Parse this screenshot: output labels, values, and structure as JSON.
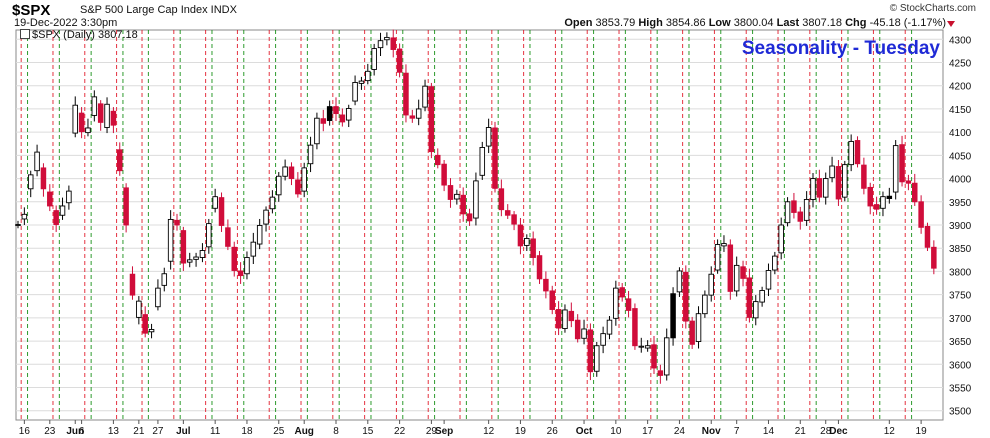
{
  "header": {
    "symbol": "$SPX",
    "full_name": "S&P 500 Large Cap Index INDX",
    "date_time": "19-Dec-2022 3:30pm",
    "credit": "© StockCharts.com",
    "open_label": "Open",
    "open_value": "3853.79",
    "high_label": "High",
    "high_value": "3854.86",
    "low_label": "Low",
    "low_value": "3800.04",
    "last_label": "Last",
    "last_value": "3807.18",
    "chg_label": "Chg",
    "chg_value": "-45.18 (-1.17%)"
  },
  "legend": {
    "text": "$SPX (Daily) 3807.18"
  },
  "overlay_title": "Seasonality - Tuesday",
  "colors": {
    "up": "#000000",
    "down": "#d00d3a",
    "grid": "#dcdcdc",
    "red_line": "#e01020",
    "green_line": "#0a8a0a",
    "title": "#1f2ad6"
  },
  "chart_data": {
    "type": "candlestick",
    "title": "Seasonality - Tuesday",
    "ylim": [
      3480,
      4320
    ],
    "y_ticks": [
      3500,
      3550,
      3600,
      3650,
      3700,
      3750,
      3800,
      3850,
      3900,
      3950,
      4000,
      4050,
      4100,
      4150,
      4200,
      4250,
      4300
    ],
    "x_labels": [
      {
        "label": "16",
        "index": 1,
        "bold": false
      },
      {
        "label": "23",
        "index": 5,
        "bold": false
      },
      {
        "label": "Jun",
        "index": 9,
        "bold": true
      },
      {
        "label": "6",
        "index": 10,
        "bold": false
      },
      {
        "label": "13",
        "index": 15,
        "bold": false
      },
      {
        "label": "21",
        "index": 19,
        "bold": false
      },
      {
        "label": "27",
        "index": 22,
        "bold": false
      },
      {
        "label": "Jul",
        "index": 26,
        "bold": true
      },
      {
        "label": "11",
        "index": 31,
        "bold": false
      },
      {
        "label": "18",
        "index": 36,
        "bold": false
      },
      {
        "label": "25",
        "index": 41,
        "bold": false
      },
      {
        "label": "Aug",
        "index": 45,
        "bold": true
      },
      {
        "label": "8",
        "index": 50,
        "bold": false
      },
      {
        "label": "15",
        "index": 55,
        "bold": false
      },
      {
        "label": "22",
        "index": 60,
        "bold": false
      },
      {
        "label": "29",
        "index": 65,
        "bold": false
      },
      {
        "label": "Sep",
        "index": 67,
        "bold": true
      },
      {
        "label": "12",
        "index": 74,
        "bold": false
      },
      {
        "label": "19",
        "index": 79,
        "bold": false
      },
      {
        "label": "26",
        "index": 84,
        "bold": false
      },
      {
        "label": "Oct",
        "index": 89,
        "bold": true
      },
      {
        "label": "10",
        "index": 94,
        "bold": false
      },
      {
        "label": "17",
        "index": 99,
        "bold": false
      },
      {
        "label": "24",
        "index": 104,
        "bold": false
      },
      {
        "label": "Nov",
        "index": 109,
        "bold": true
      },
      {
        "label": "7",
        "index": 113,
        "bold": false
      },
      {
        "label": "14",
        "index": 118,
        "bold": false
      },
      {
        "label": "21",
        "index": 123,
        "bold": false
      },
      {
        "label": "28",
        "index": 127,
        "bold": false
      },
      {
        "label": "Dec",
        "index": 129,
        "bold": true
      },
      {
        "label": "12",
        "index": 137,
        "bold": false
      },
      {
        "label": "19",
        "index": 142,
        "bold": false
      }
    ],
    "vlines": [
      {
        "index": 1,
        "color": "red"
      },
      {
        "index": 2,
        "color": "green"
      },
      {
        "index": 6,
        "color": "red"
      },
      {
        "index": 7,
        "color": "green"
      },
      {
        "index": 11,
        "color": "red"
      },
      {
        "index": 12,
        "color": "green"
      },
      {
        "index": 16,
        "color": "red"
      },
      {
        "index": 17,
        "color": "green"
      },
      {
        "index": 20,
        "color": "red"
      },
      {
        "index": 21,
        "color": "green"
      },
      {
        "index": 25,
        "color": "red"
      },
      {
        "index": 26,
        "color": "green"
      },
      {
        "index": 30,
        "color": "red"
      },
      {
        "index": 31,
        "color": "green"
      },
      {
        "index": 35,
        "color": "red"
      },
      {
        "index": 36,
        "color": "green"
      },
      {
        "index": 40,
        "color": "red"
      },
      {
        "index": 41,
        "color": "green"
      },
      {
        "index": 45,
        "color": "red"
      },
      {
        "index": 46,
        "color": "green"
      },
      {
        "index": 50,
        "color": "red"
      },
      {
        "index": 51,
        "color": "green"
      },
      {
        "index": 55,
        "color": "red"
      },
      {
        "index": 56,
        "color": "green"
      },
      {
        "index": 60,
        "color": "red"
      },
      {
        "index": 61,
        "color": "green"
      },
      {
        "index": 65,
        "color": "red"
      },
      {
        "index": 66,
        "color": "green"
      },
      {
        "index": 70,
        "color": "red"
      },
      {
        "index": 71,
        "color": "green"
      },
      {
        "index": 75,
        "color": "red"
      },
      {
        "index": 76,
        "color": "green"
      },
      {
        "index": 80,
        "color": "red"
      },
      {
        "index": 81,
        "color": "green"
      },
      {
        "index": 85,
        "color": "red"
      },
      {
        "index": 86,
        "color": "green"
      },
      {
        "index": 90,
        "color": "red"
      },
      {
        "index": 91,
        "color": "green"
      },
      {
        "index": 95,
        "color": "red"
      },
      {
        "index": 96,
        "color": "green"
      },
      {
        "index": 100,
        "color": "red"
      },
      {
        "index": 101,
        "color": "green"
      },
      {
        "index": 105,
        "color": "red"
      },
      {
        "index": 106,
        "color": "green"
      },
      {
        "index": 110,
        "color": "red"
      },
      {
        "index": 111,
        "color": "green"
      },
      {
        "index": 115,
        "color": "red"
      },
      {
        "index": 116,
        "color": "green"
      },
      {
        "index": 120,
        "color": "red"
      },
      {
        "index": 121,
        "color": "green"
      },
      {
        "index": 125,
        "color": "red"
      },
      {
        "index": 126,
        "color": "green"
      },
      {
        "index": 130,
        "color": "red"
      },
      {
        "index": 131,
        "color": "green"
      },
      {
        "index": 135,
        "color": "red"
      },
      {
        "index": 136,
        "color": "green"
      },
      {
        "index": 140,
        "color": "red"
      },
      {
        "index": 141,
        "color": "green"
      }
    ],
    "close": [
      3901,
      3923,
      4008,
      4057,
      3978,
      3941,
      3901,
      3941,
      3973,
      4158,
      4101,
      4109,
      4176,
      4121,
      4160,
      4115,
      4017,
      3900,
      3749,
      3736,
      3667,
      3675,
      3764,
      3795,
      3912,
      3900,
      3818,
      3825,
      3831,
      3845,
      3903,
      3961,
      3899,
      3854,
      3802,
      3791,
      3830,
      3863,
      3899,
      3932,
      3960,
      4005,
      4025,
      4000,
      3967,
      4023,
      4072,
      4130,
      4119,
      4155,
      4140,
      4122,
      4151,
      4207,
      4210,
      4231,
      4280,
      4297,
      4304,
      4278,
      4229,
      4137,
      4130,
      4150,
      4199,
      4058,
      4030,
      3986,
      3955,
      3966,
      3924,
      3909,
      3995,
      4067,
      4110,
      3979,
      3933,
      3921,
      3902,
      3855,
      3871,
      3830,
      3784,
      3758,
      3718,
      3678,
      3717,
      3694,
      3655,
      3676,
      3584,
      3640,
      3666,
      3695,
      3764,
      3745,
      3716,
      3640,
      3639,
      3640,
      3592,
      3576,
      3657,
      3752,
      3801,
      3693,
      3643,
      3709,
      3749,
      3794,
      3858,
      3860,
      3757,
      3813,
      3785,
      3701,
      3735,
      3759,
      3802,
      3833,
      3900,
      3950,
      3927,
      3908,
      3955,
      4000,
      3960,
      4000,
      4027,
      3956,
      4030,
      4080,
      4032,
      3979,
      3941,
      3934,
      3961,
      3962,
      4071,
      3993,
      3990,
      3950,
      3895,
      3852,
      3807
    ],
    "open_offset": [
      0,
      -10,
      -30,
      -40,
      45,
      30,
      30,
      -20,
      -25,
      -60,
      40,
      -10,
      -40,
      40,
      -50,
      30,
      45,
      80,
      45,
      -35,
      40,
      -5,
      -40,
      -25,
      -90,
      10,
      70,
      -5,
      -5,
      -15,
      -50,
      -25,
      60,
      40,
      50,
      10,
      -35,
      -30,
      -40,
      -30,
      -25,
      -40,
      -20,
      25,
      30,
      -50,
      -40,
      -55,
      10,
      -30,
      15,
      15,
      -25,
      -40,
      -5,
      -20,
      -45,
      -15,
      -5,
      25,
      50,
      90,
      5,
      -20,
      -45,
      140,
      20,
      45,
      30,
      -10,
      40,
      15,
      -80,
      -60,
      -40,
      130,
      45,
      10,
      20,
      45,
      -15,
      40,
      50,
      25,
      40,
      40,
      -40,
      20,
      40,
      -20,
      90,
      -55,
      -25,
      -30,
      -65,
      20,
      25,
      80,
      0,
      -5,
      50,
      10,
      -80,
      -95,
      -45,
      105,
      50,
      -60,
      -40,
      -45,
      -55,
      -5,
      100,
      -55,
      25,
      85,
      -35,
      -25,
      -40,
      -30,
      -60,
      -45,
      25,
      20,
      -45,
      -45,
      40,
      -40,
      -25,
      70,
      -70,
      -50,
      50,
      50,
      40,
      10,
      -25,
      -5,
      -100,
      80,
      5,
      40,
      55,
      45,
      45
    ],
    "up_candles_black": [
      49,
      83,
      103,
      137
    ]
  }
}
